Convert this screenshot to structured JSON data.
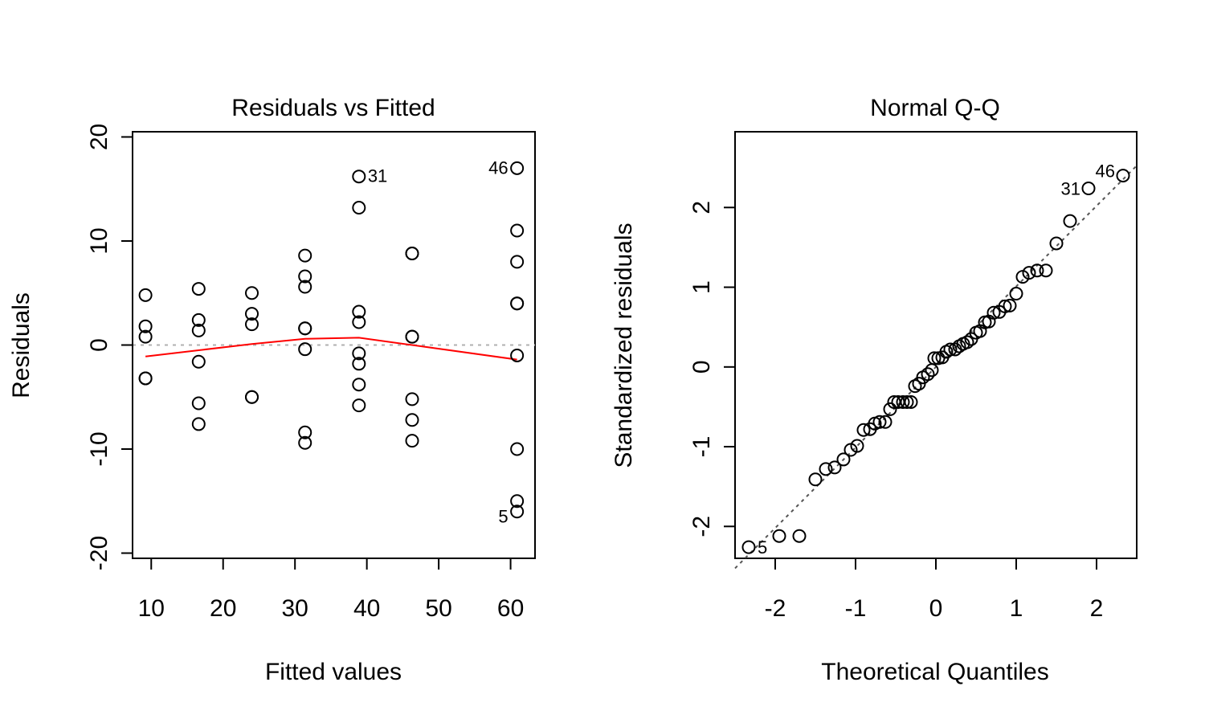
{
  "chart_data": [
    {
      "type": "scatter",
      "title": "Residuals vs Fitted",
      "xlabel": "Fitted values",
      "ylabel": "Residuals",
      "xlim": [
        7.4,
        63.4
      ],
      "ylim": [
        -20.5,
        20.5
      ],
      "xticks": [
        10,
        20,
        30,
        40,
        50,
        60
      ],
      "xtick_labels": [
        "10",
        "20",
        "30",
        "40",
        "50",
        "60"
      ],
      "yticks": [
        -20,
        -10,
        0,
        10,
        20
      ],
      "ytick_labels": [
        "-20",
        "-10",
        "0",
        "10",
        "20"
      ],
      "reference_line": 0,
      "points": [
        {
          "x": 9.2,
          "y": 4.8
        },
        {
          "x": 9.2,
          "y": 1.8
        },
        {
          "x": 9.2,
          "y": 0.8
        },
        {
          "x": 9.2,
          "y": -3.2
        },
        {
          "x": 9.2,
          "y": -3.2
        },
        {
          "x": 16.6,
          "y": 5.4
        },
        {
          "x": 16.6,
          "y": 2.4
        },
        {
          "x": 16.6,
          "y": 1.4
        },
        {
          "x": 16.6,
          "y": -1.6
        },
        {
          "x": 16.6,
          "y": -5.6
        },
        {
          "x": 16.6,
          "y": -7.6
        },
        {
          "x": 24.0,
          "y": 5.0
        },
        {
          "x": 24.0,
          "y": 3.0
        },
        {
          "x": 24.0,
          "y": 2.0
        },
        {
          "x": 24.0,
          "y": -5.0
        },
        {
          "x": 24.0,
          "y": -5.0
        },
        {
          "x": 31.4,
          "y": 8.6
        },
        {
          "x": 31.4,
          "y": 6.6
        },
        {
          "x": 31.4,
          "y": 5.6
        },
        {
          "x": 31.4,
          "y": 1.6
        },
        {
          "x": 31.4,
          "y": 1.6
        },
        {
          "x": 31.4,
          "y": -0.4
        },
        {
          "x": 31.4,
          "y": -8.4
        },
        {
          "x": 31.4,
          "y": -9.4
        },
        {
          "x": 38.9,
          "y": 16.2,
          "label": "31"
        },
        {
          "x": 38.9,
          "y": 13.2
        },
        {
          "x": 38.9,
          "y": 3.2
        },
        {
          "x": 38.9,
          "y": 2.2
        },
        {
          "x": 38.9,
          "y": -0.8
        },
        {
          "x": 38.9,
          "y": -1.8
        },
        {
          "x": 38.9,
          "y": -3.8
        },
        {
          "x": 38.9,
          "y": -5.8
        },
        {
          "x": 46.3,
          "y": 8.8
        },
        {
          "x": 46.3,
          "y": 8.8
        },
        {
          "x": 46.3,
          "y": 0.8
        },
        {
          "x": 46.3,
          "y": 0.8
        },
        {
          "x": 46.3,
          "y": -5.2
        },
        {
          "x": 46.3,
          "y": -7.2
        },
        {
          "x": 46.3,
          "y": -9.2
        },
        {
          "x": 60.9,
          "y": 17.0,
          "label": "46"
        },
        {
          "x": 60.9,
          "y": 11.0
        },
        {
          "x": 60.9,
          "y": 8.0
        },
        {
          "x": 60.9,
          "y": 4.0
        },
        {
          "x": 60.9,
          "y": 4.0
        },
        {
          "x": 60.9,
          "y": -1.0
        },
        {
          "x": 60.9,
          "y": -10.0
        },
        {
          "x": 60.9,
          "y": -15.0
        },
        {
          "x": 60.9,
          "y": -16.0,
          "label": "5"
        }
      ],
      "smooth_line": {
        "color": "#ff0000",
        "x": [
          9.2,
          16.6,
          24.0,
          31.4,
          38.9,
          46.3,
          60.9
        ],
        "y": [
          -1.1,
          -0.5,
          0.1,
          0.6,
          0.7,
          0.0,
          -1.4
        ]
      }
    },
    {
      "type": "scatter",
      "title": "Normal Q-Q",
      "xlabel": "Theoretical Quantiles",
      "ylabel": "Standardized residuals",
      "xlim": [
        -2.5,
        2.5
      ],
      "ylim": [
        -2.4,
        2.95
      ],
      "xticks": [
        -2,
        -1,
        0,
        1,
        2
      ],
      "xtick_labels": [
        "-2",
        "-1",
        "0",
        "1",
        "2"
      ],
      "yticks": [
        -2,
        -1,
        0,
        1,
        2
      ],
      "ytick_labels": [
        "-2",
        "-1",
        "0",
        "1",
        "2"
      ],
      "reference_line": {
        "intercept": 0.0,
        "slope": 1.01
      },
      "points": [
        {
          "x": -2.33,
          "y": -2.26,
          "label": "5"
        },
        {
          "x": -1.95,
          "y": -2.12
        },
        {
          "x": -1.7,
          "y": -2.12
        },
        {
          "x": -1.5,
          "y": -1.41
        },
        {
          "x": -1.37,
          "y": -1.28
        },
        {
          "x": -1.26,
          "y": -1.26
        },
        {
          "x": -1.15,
          "y": -1.16
        },
        {
          "x": -1.06,
          "y": -1.04
        },
        {
          "x": -0.98,
          "y": -0.99
        },
        {
          "x": -0.9,
          "y": -0.79
        },
        {
          "x": -0.82,
          "y": -0.78
        },
        {
          "x": -0.76,
          "y": -0.71
        },
        {
          "x": -0.7,
          "y": -0.69
        },
        {
          "x": -0.63,
          "y": -0.69
        },
        {
          "x": -0.57,
          "y": -0.53
        },
        {
          "x": -0.52,
          "y": -0.44
        },
        {
          "x": -0.47,
          "y": -0.44
        },
        {
          "x": -0.41,
          "y": -0.44
        },
        {
          "x": -0.36,
          "y": -0.44
        },
        {
          "x": -0.31,
          "y": -0.44
        },
        {
          "x": -0.26,
          "y": -0.24
        },
        {
          "x": -0.21,
          "y": -0.21
        },
        {
          "x": -0.16,
          "y": -0.13
        },
        {
          "x": -0.1,
          "y": -0.09
        },
        {
          "x": -0.05,
          "y": -0.04
        },
        {
          "x": -0.02,
          "y": 0.11
        },
        {
          "x": 0.03,
          "y": 0.11
        },
        {
          "x": 0.08,
          "y": 0.12
        },
        {
          "x": 0.13,
          "y": 0.19
        },
        {
          "x": 0.18,
          "y": 0.22
        },
        {
          "x": 0.24,
          "y": 0.22
        },
        {
          "x": 0.29,
          "y": 0.26
        },
        {
          "x": 0.34,
          "y": 0.29
        },
        {
          "x": 0.39,
          "y": 0.31
        },
        {
          "x": 0.44,
          "y": 0.35
        },
        {
          "x": 0.5,
          "y": 0.43
        },
        {
          "x": 0.55,
          "y": 0.45
        },
        {
          "x": 0.61,
          "y": 0.56
        },
        {
          "x": 0.66,
          "y": 0.57
        },
        {
          "x": 0.72,
          "y": 0.68
        },
        {
          "x": 0.79,
          "y": 0.69
        },
        {
          "x": 0.86,
          "y": 0.76
        },
        {
          "x": 0.92,
          "y": 0.77
        },
        {
          "x": 1.0,
          "y": 0.92
        },
        {
          "x": 1.08,
          "y": 1.13
        },
        {
          "x": 1.16,
          "y": 1.18
        },
        {
          "x": 1.26,
          "y": 1.21
        },
        {
          "x": 1.37,
          "y": 1.21
        },
        {
          "x": 1.5,
          "y": 1.55
        },
        {
          "x": 1.67,
          "y": 1.83
        },
        {
          "x": 1.9,
          "y": 2.24,
          "label": "31"
        },
        {
          "x": 2.33,
          "y": 2.4,
          "label": "46"
        }
      ]
    }
  ]
}
